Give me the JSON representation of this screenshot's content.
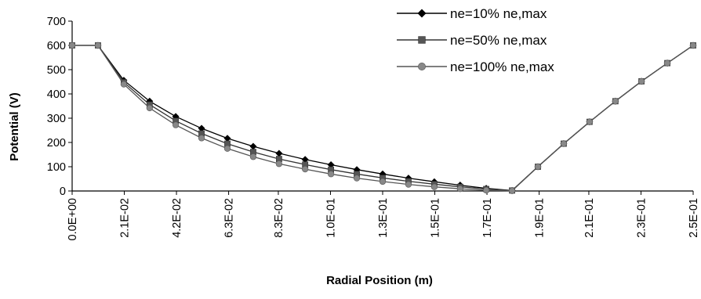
{
  "chart_data": {
    "type": "line",
    "title": "",
    "xlabel": "Radial Position (m)",
    "ylabel": "Potential (V)",
    "ylim": [
      0,
      700
    ],
    "yticks": [
      "0",
      "100",
      "200",
      "300",
      "400",
      "500",
      "600",
      "700"
    ],
    "xlim": [
      0,
      0.25
    ],
    "xtick_values": [
      0.0,
      0.021,
      0.042,
      0.063,
      0.083,
      0.104,
      0.125,
      0.146,
      0.167,
      0.188,
      0.208,
      0.229,
      0.25
    ],
    "xtick_labels": [
      "0.0E+00",
      "2.1E-02",
      "4.2E-02",
      "6.3E-02",
      "8.3E-02",
      "1.0E-01",
      "1.3E-01",
      "1.5E-01",
      "1.7E-01",
      "1.9E-01",
      "2.1E-01",
      "2.3E-01",
      "2.5E-01"
    ],
    "grid": false,
    "legend_position": "top-right",
    "x": [
      0.0,
      0.0104,
      0.0208,
      0.0312,
      0.0417,
      0.0521,
      0.0625,
      0.0729,
      0.0833,
      0.0938,
      0.1042,
      0.1146,
      0.125,
      0.1354,
      0.1458,
      0.1562,
      0.1667,
      0.1771,
      0.1875,
      0.1979,
      0.2083,
      0.2187,
      0.2292,
      0.2396,
      0.25
    ],
    "series": [
      {
        "name": "ne=10% ne,max",
        "marker": "diamond",
        "values": [
          600,
          600,
          456,
          370,
          307,
          258,
          217,
          184,
          155,
          130,
          108,
          88,
          70,
          53,
          38,
          24,
          11,
          2,
          100,
          195,
          285,
          370,
          452,
          527,
          600
        ]
      },
      {
        "name": "ne=50% ne,max",
        "marker": "square",
        "values": [
          600,
          600,
          448,
          356,
          289,
          237,
          195,
          161,
          132,
          109,
          88,
          70,
          54,
          40,
          28,
          17,
          8,
          2,
          100,
          195,
          285,
          370,
          452,
          527,
          600
        ]
      },
      {
        "name": "ne=100% ne,max",
        "marker": "circle",
        "values": [
          600,
          600,
          440,
          342,
          272,
          218,
          175,
          141,
          112,
          90,
          70,
          53,
          39,
          27,
          17,
          9,
          3,
          1,
          100,
          195,
          285,
          370,
          452,
          527,
          600
        ]
      }
    ]
  }
}
